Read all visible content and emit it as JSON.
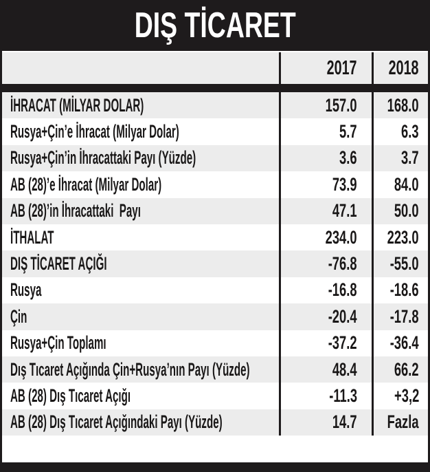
{
  "title": "DIŞ TİCARET",
  "colors": {
    "bar_black": "#1e1b1c",
    "row_gray": "#ececec",
    "row_white": "#ffffff",
    "text": "#191717",
    "title_text": "#ffffff"
  },
  "table": {
    "columns": [
      "2017",
      "2018"
    ],
    "rows": [
      {
        "label": "İHRACAT (MİLYAR DOLAR)",
        "y2017": "157.0",
        "y2018": "168.0"
      },
      {
        "label": "Rusya+Çin’e İhracat (Milyar Dolar)",
        "y2017": "5.7",
        "y2018": "6.3"
      },
      {
        "label": "Rusya+Çin’in İhracattaki Payı (Yüzde)",
        "y2017": "3.6",
        "y2018": "3.7"
      },
      {
        "label": "AB (28)’e İhracat (Milyar Dolar)",
        "y2017": "73.9",
        "y2018": "84.0"
      },
      {
        "label": "AB (28)’in İhracattaki  Payı",
        "y2017": "47.1",
        "y2018": "50.0"
      },
      {
        "label": "İTHALAT",
        "y2017": "234.0",
        "y2018": "223.0"
      },
      {
        "label": "DIŞ TİCARET AÇIĞI",
        "y2017": "-76.8",
        "y2018": "-55.0"
      },
      {
        "label": "Rusya",
        "y2017": "-16.8",
        "y2018": "-18.6"
      },
      {
        "label": "Çin",
        "y2017": "-20.4",
        "y2018": "-17.8"
      },
      {
        "label": "Rusya+Çin Toplamı",
        "y2017": "-37.2",
        "y2018": "-36.4"
      },
      {
        "label": "Dış Tıcaret Açığında Çin+Rusya’nın Payı (Yüzde)",
        "y2017": "48.4",
        "y2018": "66.2"
      },
      {
        "label": "AB (28) Dış Tıcaret Açığı",
        "y2017": "-11.3",
        "y2018": "+3,2"
      },
      {
        "label": "AB (28) Dış Tıcaret Açığındaki Payı (Yüzde)",
        "y2017": "14.7",
        "y2018": "Fazla"
      }
    ]
  },
  "chart_data": {
    "type": "table",
    "title": "DIŞ TİCARET",
    "columns": [
      "",
      "2017",
      "2018"
    ],
    "rows": [
      [
        "İHRACAT (MİLYAR DOLAR)",
        "157.0",
        "168.0"
      ],
      [
        "Rusya+Çin’e İhracat (Milyar Dolar)",
        "5.7",
        "6.3"
      ],
      [
        "Rusya+Çin’in İhracattaki Payı (Yüzde)",
        "3.6",
        "3.7"
      ],
      [
        "AB (28)’e İhracat (Milyar Dolar)",
        "73.9",
        "84.0"
      ],
      [
        "AB (28)’in İhracattaki Payı",
        "47.1",
        "50.0"
      ],
      [
        "İTHALAT",
        "234.0",
        "223.0"
      ],
      [
        "DIŞ TİCARET AÇIĞI",
        "-76.8",
        "-55.0"
      ],
      [
        "Rusya",
        "-16.8",
        "-18.6"
      ],
      [
        "Çin",
        "-20.4",
        "-17.8"
      ],
      [
        "Rusya+Çin Toplamı",
        "-37.2",
        "-36.4"
      ],
      [
        "Dış Tıcaret Açığında Çin+Rusya’nın Payı (Yüzde)",
        "48.4",
        "66.2"
      ],
      [
        "AB (28) Dış Tıcaret Açığı",
        "-11.3",
        "+3,2"
      ],
      [
        "AB (28) Dış Tıcaret Açığındaki Payı (Yüzde)",
        "14.7",
        "Fazla"
      ]
    ]
  }
}
